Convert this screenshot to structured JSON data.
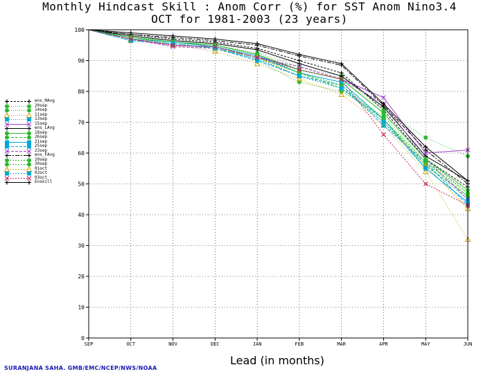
{
  "chart_data": {
    "type": "line",
    "title": "Monthly Hindcast Skill : Anom Corr (%) for SST Anom Nino3.4",
    "subtitle": "OCT for 1981-2003 (23 years)",
    "xlabel": "Lead (in months)",
    "ylabel": "",
    "credit": "SURANJANA SAHA. GMB/EMC/NCEP/NWS/NOAA",
    "categories": [
      "SEP",
      "OCT",
      "NOV",
      "DEC",
      "JAN",
      "FEB",
      "MAR",
      "APR",
      "MAY",
      "JUN"
    ],
    "ylim": [
      0,
      100
    ],
    "yticks": [
      0,
      10,
      20,
      30,
      40,
      50,
      60,
      70,
      80,
      90,
      100
    ],
    "grid": true,
    "legend_position": "left",
    "series": [
      {
        "name": "ens_MAvg",
        "color": "#000000",
        "dash": "3,2",
        "marker": "plus",
        "values": [
          100,
          98.5,
          97,
          96,
          94,
          90,
          86,
          74,
          58,
          49
        ]
      },
      {
        "name": "20sep",
        "color": "#2db82d",
        "dash": "1,2",
        "marker": "circle",
        "values": [
          100,
          97.5,
          96.5,
          95,
          92.5,
          88,
          85,
          74,
          65,
          59
        ]
      },
      {
        "name": "14sep",
        "color": "#2db82d",
        "dash": "1,2",
        "marker": "circle",
        "values": [
          100,
          97,
          95,
          94,
          90,
          83,
          80,
          72,
          57,
          47
        ]
      },
      {
        "name": "11sep",
        "color": "#c8a400",
        "dash": "1,2",
        "marker": "triangle",
        "values": [
          100,
          96.5,
          95,
          93,
          89,
          84,
          79,
          69,
          54,
          32
        ]
      },
      {
        "name": "13sep",
        "color": "#00a8d8",
        "dash": "1,2",
        "marker": "square",
        "values": [
          100,
          96.5,
          95.5,
          94,
          90.5,
          85,
          82,
          70,
          56,
          45
        ]
      },
      {
        "name": "15sep",
        "color": "#a040c8",
        "dash": "",
        "marker": "x",
        "values": [
          100,
          97,
          95,
          94.5,
          91.5,
          87,
          84,
          78,
          60,
          61
        ]
      },
      {
        "name": "ens_LAvg",
        "color": "#000000",
        "dash": "",
        "marker": "plus",
        "values": [
          100,
          98,
          96.5,
          95.5,
          93.5,
          89,
          85,
          75,
          59,
          51
        ]
      },
      {
        "name": "18sep",
        "color": "#2db82d",
        "dash": "",
        "marker": "circle",
        "values": [
          100,
          97.5,
          96,
          95,
          92,
          87,
          84,
          73,
          58,
          48
        ]
      },
      {
        "name": "26sep",
        "color": "#2db82d",
        "dash": "4,2",
        "marker": "circle",
        "values": [
          100,
          97,
          96,
          94.5,
          91,
          86,
          81,
          71,
          56,
          46
        ]
      },
      {
        "name": "21sep",
        "color": "#00a8d8",
        "dash": "",
        "marker": "square",
        "values": [
          100,
          97,
          96,
          94.5,
          91.5,
          86,
          83,
          71,
          55,
          44
        ]
      },
      {
        "name": "25sep",
        "color": "#00a8d8",
        "dash": "4,2",
        "marker": "square",
        "values": [
          100,
          96.5,
          95.5,
          94,
          90,
          85,
          82,
          69,
          57,
          43
        ]
      },
      {
        "name": "23sep",
        "color": "#a040c8",
        "dash": "4,2",
        "marker": "x",
        "values": [
          100,
          97,
          94.5,
          94,
          91,
          88,
          84,
          76,
          58,
          45
        ]
      },
      {
        "name": "ens_FAvg",
        "color": "#000000",
        "dash": "6,2,2,2",
        "marker": "plus",
        "values": [
          100,
          98.5,
          97.5,
          96.5,
          95,
          91.5,
          88.5,
          75.5,
          61,
          50
        ]
      },
      {
        "name": "29sep",
        "color": "#2db82d",
        "dash": "2,2",
        "marker": "circle",
        "values": [
          100,
          97.5,
          96,
          95,
          92,
          87,
          84,
          73,
          58,
          47
        ]
      },
      {
        "name": "30sep",
        "color": "#2db82d",
        "dash": "2,2",
        "marker": "circle",
        "values": [
          100,
          97.5,
          96,
          95,
          92,
          86,
          82,
          71,
          57,
          46
        ]
      },
      {
        "name": "01oct",
        "color": "#c8a400",
        "dash": "2,2",
        "marker": "triangle",
        "values": [
          100,
          97,
          95.5,
          94,
          91,
          85,
          81,
          70,
          56,
          42
        ]
      },
      {
        "name": "02oct",
        "color": "#00a8d8",
        "dash": "2,2",
        "marker": "square",
        "values": [
          100,
          96.5,
          95.5,
          94,
          90.5,
          85,
          81,
          70,
          55,
          44
        ]
      },
      {
        "name": "03oct",
        "color": "#c81e50",
        "dash": "2,2",
        "marker": "x",
        "values": [
          100,
          97,
          95,
          94.5,
          91,
          87,
          84,
          66,
          50,
          43
        ]
      },
      {
        "name": "Enskill",
        "color": "#000000",
        "dash": "",
        "marker": "plus",
        "values": [
          100,
          99,
          98,
          97,
          95.5,
          92,
          89,
          76,
          62,
          51
        ]
      }
    ]
  }
}
